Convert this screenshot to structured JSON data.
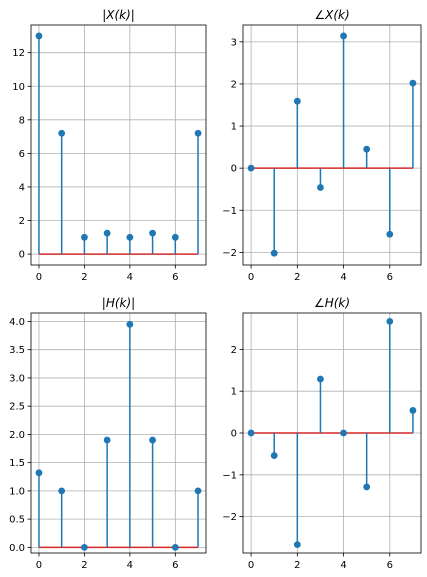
{
  "chart_data": [
    {
      "type": "stem",
      "title": "|X(k)|",
      "x": [
        0,
        1,
        2,
        3,
        4,
        5,
        6,
        7
      ],
      "values": [
        13.0,
        7.2,
        1.0,
        1.25,
        1.0,
        1.25,
        1.0,
        7.2
      ],
      "xlim": [
        -0.35,
        7.35
      ],
      "ylim": [
        -0.65,
        13.65
      ],
      "xticks": [
        0,
        2,
        4,
        6
      ],
      "yticks": [
        0,
        2,
        4,
        6,
        8,
        10,
        12
      ],
      "ytick_labels": [
        "0",
        "2",
        "4",
        "6",
        "8",
        "10",
        "12"
      ],
      "grid": true,
      "colors": {
        "stem": "#1f77b4",
        "baseline": "#d62728"
      }
    },
    {
      "type": "stem",
      "title": "∠X(k)",
      "x": [
        0,
        1,
        2,
        3,
        4,
        5,
        6,
        7
      ],
      "values": [
        0.0,
        -2.02,
        1.59,
        -0.46,
        3.14,
        0.45,
        -1.57,
        2.02
      ],
      "xlim": [
        -0.35,
        7.35
      ],
      "ylim": [
        -2.3,
        3.4
      ],
      "xticks": [
        0,
        2,
        4,
        6
      ],
      "yticks": [
        -2,
        -1,
        0,
        1,
        2,
        3
      ],
      "ytick_labels": [
        "−2",
        "−1",
        "0",
        "1",
        "2",
        "3"
      ],
      "grid": true,
      "colors": {
        "stem": "#1f77b4",
        "baseline": "#d62728"
      }
    },
    {
      "type": "stem",
      "title": "|H(k)|",
      "x": [
        0,
        1,
        2,
        3,
        4,
        5,
        6,
        7
      ],
      "values": [
        1.32,
        1.0,
        0.0,
        1.9,
        3.95,
        1.9,
        0.0,
        1.0
      ],
      "xlim": [
        -0.35,
        7.35
      ],
      "ylim": [
        -0.1,
        4.15
      ],
      "xticks": [
        0,
        2,
        4,
        6
      ],
      "yticks": [
        0.0,
        0.5,
        1.0,
        1.5,
        2.0,
        2.5,
        3.0,
        3.5,
        4.0
      ],
      "ytick_labels": [
        "0.0",
        "0.5",
        "1.0",
        "1.5",
        "2.0",
        "2.5",
        "3.0",
        "3.5",
        "4.0"
      ],
      "grid": true,
      "colors": {
        "stem": "#1f77b4",
        "baseline": "#d62728"
      }
    },
    {
      "type": "stem",
      "title": "∠H(k)",
      "x": [
        0,
        1,
        2,
        3,
        4,
        5,
        6,
        7
      ],
      "values": [
        0.0,
        -0.54,
        -2.67,
        1.29,
        0.0,
        -1.29,
        2.67,
        0.54
      ],
      "xlim": [
        -0.35,
        7.35
      ],
      "ylim": [
        -2.87,
        2.87
      ],
      "xticks": [
        0,
        2,
        4,
        6
      ],
      "yticks": [
        -2,
        -1,
        0,
        1,
        2
      ],
      "ytick_labels": [
        "−2",
        "−1",
        "0",
        "1",
        "2"
      ],
      "grid": true,
      "colors": {
        "stem": "#1f77b4",
        "baseline": "#d62728"
      }
    }
  ]
}
